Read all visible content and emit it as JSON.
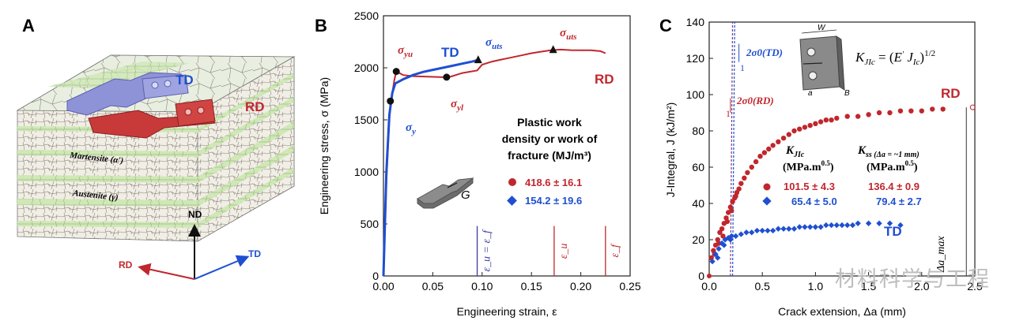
{
  "colors": {
    "rd": "#c0272d",
    "td": "#1f4fd1",
    "axis": "#222222",
    "ref": "#3b3b9e"
  },
  "panels": {
    "a": {
      "letter": "A",
      "labels": {
        "td": "TD",
        "rd": "RD",
        "martensite": "Martensite (α')",
        "austenite": "Austenite (γ)",
        "axis_nd": "ND",
        "axis_rd": "RD",
        "axis_td": "TD"
      }
    },
    "b": {
      "letter": "B"
    },
    "c": {
      "letter": "C"
    }
  },
  "watermark": "材料科学与工程",
  "chart_data": [
    {
      "type": "line",
      "panel": "B",
      "xlabel": "Engineering strain, ε",
      "ylabel": "Engineering stress, σ (MPa)",
      "xlim": [
        0,
        0.25
      ],
      "ylim": [
        0,
        2500
      ],
      "xticks": [
        0,
        0.05,
        0.1,
        0.15,
        0.2,
        0.25
      ],
      "xtick_labels": [
        "0.00",
        "0.05",
        "0.10",
        "0.15",
        "0.20",
        "0.25"
      ],
      "yticks": [
        0,
        500,
        1000,
        1500,
        2000,
        2500
      ],
      "series": [
        {
          "name": "RD",
          "color": "#c0272d",
          "x": [
            0,
            0.003,
            0.006,
            0.008,
            0.011,
            0.013,
            0.02,
            0.03,
            0.045,
            0.06,
            0.068,
            0.08,
            0.095,
            0.1,
            0.11,
            0.12,
            0.13,
            0.14,
            0.15,
            0.16,
            0.17,
            0.18,
            0.19,
            0.2,
            0.21,
            0.22,
            0.225
          ],
          "y": [
            0,
            900,
            1520,
            1700,
            1880,
            1965,
            1930,
            1920,
            1915,
            1910,
            1915,
            1950,
            1975,
            2030,
            2060,
            2080,
            2100,
            2120,
            2140,
            2155,
            2170,
            2175,
            2170,
            2168,
            2168,
            2160,
            2140
          ]
        },
        {
          "name": "TD",
          "color": "#1f4fd1",
          "x": [
            0,
            0.003,
            0.006,
            0.009,
            0.012,
            0.02,
            0.03,
            0.04,
            0.05,
            0.06,
            0.07,
            0.08,
            0.09,
            0.096
          ],
          "y": [
            0,
            1000,
            1550,
            1760,
            1850,
            1890,
            1930,
            1960,
            1980,
            2000,
            2020,
            2040,
            2060,
            2075
          ]
        }
      ],
      "markers": [
        {
          "label": "σ_yu",
          "x": 0.013,
          "y": 1965,
          "shape": "circle",
          "color": "#c0272d"
        },
        {
          "label": "σ_y",
          "x": 0.007,
          "y": 1680,
          "shape": "circle",
          "color": "#1f4fd1"
        },
        {
          "label": "σ_yl",
          "x": 0.064,
          "y": 1910,
          "shape": "circle",
          "color": "#c0272d"
        },
        {
          "label": "σ_uts",
          "x": 0.096,
          "y": 2075,
          "shape": "triangle",
          "color": "#1f4fd1"
        },
        {
          "label": "σ_uts",
          "x": 0.172,
          "y": 2172,
          "shape": "triangle",
          "color": "#c0272d"
        }
      ],
      "series_labels": {
        "td": "TD",
        "rd": "RD"
      },
      "annotations": {
        "legend_title": [
          "Plastic work",
          "density or work of",
          "fracture (MJ/m³)"
        ],
        "legend_entries": [
          {
            "value": "418.6 ± 16.1",
            "color": "#c0272d",
            "shape": "circle"
          },
          {
            "value": "154.2 ± 19.6",
            "color": "#1f4fd1",
            "shape": "diamond"
          }
        ],
        "specimen_label": "G",
        "vlines": [
          {
            "x": 0.095,
            "label": "ε_u = ε_f",
            "color": "#3b3b9e"
          },
          {
            "x": 0.173,
            "label": "ε_u",
            "color": "#c0272d"
          },
          {
            "x": 0.225,
            "label": "ε_f",
            "color": "#c0272d"
          }
        ]
      }
    },
    {
      "type": "scatter",
      "panel": "C",
      "xlabel": "Crack extension, Δa (mm)",
      "ylabel": "J-Integral, J (kJ/m²)",
      "xlim": [
        0,
        2.5
      ],
      "ylim": [
        0,
        140
      ],
      "xticks": [
        0,
        0.5,
        1,
        1.5,
        2,
        2.5
      ],
      "xtick_labels": [
        "0.0",
        "0.5",
        "1.0",
        "1.5",
        "2.0",
        "2.5"
      ],
      "yticks": [
        0,
        20,
        40,
        60,
        80,
        100,
        120,
        140
      ],
      "series": [
        {
          "name": "RD",
          "color": "#c0272d",
          "shape": "circle",
          "x": [
            0.02,
            0.04,
            0.06,
            0.08,
            0.1,
            0.12,
            0.14,
            0.16,
            0.18,
            0.2,
            0.22,
            0.24,
            0.26,
            0.28,
            0.3,
            0.33,
            0.36,
            0.4,
            0.44,
            0.48,
            0.52,
            0.56,
            0.6,
            0.65,
            0.7,
            0.75,
            0.8,
            0.85,
            0.9,
            0.95,
            1.0,
            1.05,
            1.1,
            1.15,
            1.2,
            1.3,
            1.4,
            1.5,
            1.6,
            1.7,
            1.8,
            1.9,
            2.0,
            2.1,
            2.2,
            0.05,
            0.09,
            0.13,
            0.17,
            0.21,
            0.25
          ],
          "y": [
            10,
            14,
            17,
            20,
            24,
            26,
            29,
            32,
            35,
            38,
            41,
            43,
            46,
            48,
            51,
            54,
            57,
            60,
            63,
            66,
            68,
            70,
            72,
            74,
            76,
            78,
            80,
            81,
            82,
            83,
            84,
            85,
            86,
            86,
            87,
            88,
            88,
            89,
            90,
            90,
            91,
            91,
            91,
            92,
            92,
            12,
            18,
            22,
            30,
            36,
            44
          ]
        },
        {
          "name": "TD",
          "color": "#1f4fd1",
          "shape": "diamond",
          "x": [
            0.03,
            0.06,
            0.09,
            0.12,
            0.15,
            0.18,
            0.21,
            0.25,
            0.3,
            0.35,
            0.4,
            0.45,
            0.5,
            0.55,
            0.6,
            0.65,
            0.7,
            0.75,
            0.8,
            0.85,
            0.9,
            0.95,
            1.0,
            1.05,
            1.1,
            1.15,
            1.2,
            1.25,
            1.3,
            1.35,
            1.4,
            1.5,
            1.6,
            1.7,
            1.8,
            0.08,
            0.14,
            0.2
          ],
          "y": [
            8,
            12,
            15,
            18,
            20,
            21,
            22,
            22,
            23,
            24,
            24,
            25,
            25,
            25,
            25,
            26,
            26,
            26,
            26,
            27,
            27,
            27,
            27,
            27,
            28,
            28,
            28,
            28,
            28,
            28,
            29,
            29,
            29,
            29,
            28,
            10,
            17,
            20
          ]
        }
      ],
      "endpoint": {
        "x": 2.42,
        "y": 93,
        "label": "Δa_max"
      },
      "series_labels": {
        "rd": "RD",
        "td": "TD"
      },
      "construction_lines": [
        {
          "label": "2σ0(TD)",
          "slope_label": "1",
          "color": "#3b3b9e"
        },
        {
          "label": "2σ0(RD)",
          "slope_label": "1",
          "color": "#c0272d"
        }
      ],
      "formula": "K_JIc = (E' J_Ic)^1/2",
      "specimen_labels": {
        "w": "W",
        "a": "a",
        "b": "B"
      },
      "table": {
        "headers": [
          "K_JIc",
          "K_ss (Δa = ~1 mm)"
        ],
        "units": [
          "(MPa.m^0.5)",
          "(MPa.m^0.5)"
        ],
        "rows": [
          {
            "series": "RD",
            "color": "#c0272d",
            "kjic": "101.5 ± 4.3",
            "kss": "136.4 ± 0.9"
          },
          {
            "series": "TD",
            "color": "#1f4fd1",
            "kjic": "65.4 ± 5.0",
            "kss": "79.4 ± 2.7"
          }
        ]
      }
    }
  ]
}
